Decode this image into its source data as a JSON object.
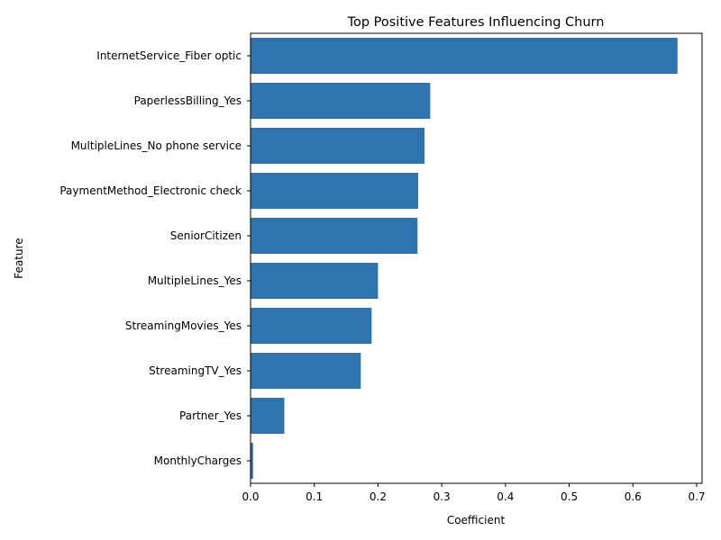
{
  "chart_data": {
    "type": "bar",
    "orientation": "horizontal",
    "title": "Top Positive Features Influencing Churn",
    "xlabel": "Coefficient",
    "ylabel": "Feature",
    "categories": [
      "InternetService_Fiber optic",
      "PaperlessBilling_Yes",
      "MultipleLines_No phone service",
      "PaymentMethod_Electronic check",
      "SeniorCitizen",
      "MultipleLines_Yes",
      "StreamingMovies_Yes",
      "StreamingTV_Yes",
      "Partner_Yes",
      "MonthlyCharges"
    ],
    "values": [
      0.67,
      0.282,
      0.273,
      0.263,
      0.262,
      0.2,
      0.19,
      0.173,
      0.053,
      0.004
    ],
    "xlim": [
      0.0,
      0.7
    ],
    "xticks": [
      "0.0",
      "0.1",
      "0.2",
      "0.3",
      "0.4",
      "0.5",
      "0.6",
      "0.7"
    ],
    "bar_color": "#2e75b0",
    "grid": false,
    "legend": "none"
  }
}
